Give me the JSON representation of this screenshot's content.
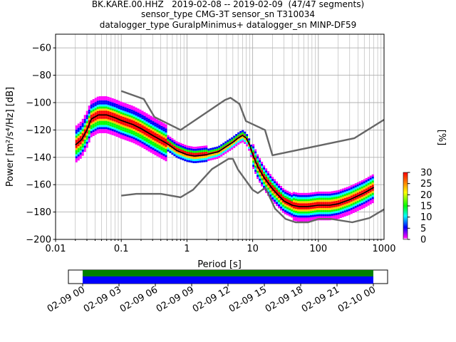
{
  "titles": [
    "BK.KARE.00.HHZ   2019-02-08 -- 2019-02-09  (47/47 segments)",
    "sensor_type CMG-3T sensor_sn T310034",
    "datalogger_type GuralpMinimus+ datalogger_sn MINP-DF59"
  ],
  "colors": {
    "model_lines": "#666666",
    "mode_line": "#000000",
    "grid": "#b0b0b0",
    "coverage_green": "#008000",
    "coverage_blue": "#0000ff"
  },
  "colorbar": {
    "label": "[%]",
    "ticks": [
      "0",
      "5",
      "10",
      "15",
      "20",
      "25",
      "30"
    ],
    "range": [
      0,
      30
    ],
    "colormap": "pqlx"
  },
  "coverage": {
    "ticks": [
      "02-09 00",
      "02-09 03",
      "02-09 06",
      "02-09 09",
      "02-09 12",
      "02-09 15",
      "02-09 18",
      "02-09 21",
      "02-10 00"
    ],
    "data_span_fraction": [
      0.0,
      1.0
    ]
  },
  "chart_data": {
    "type": "heatmap",
    "title": "BK.KARE.00.HHZ   2019-02-08 -- 2019-02-09  (47/47 segments)",
    "xlabel": "Period [s]",
    "ylabel": "Power [m²/s⁴/Hz] [dB]",
    "xscale": "log",
    "xlim": [
      0.01,
      1000
    ],
    "ylim": [
      -200,
      -50
    ],
    "xticks": [
      "0.01",
      "0.1",
      "1",
      "10",
      "100",
      "1000"
    ],
    "yticks": [
      "−200",
      "−180",
      "−160",
      "−140",
      "−120",
      "−100",
      "−80",
      "−60"
    ],
    "grid": true,
    "mode": {
      "period": [
        0.02,
        0.025,
        0.03,
        0.035,
        0.045,
        0.06,
        0.08,
        0.1,
        0.15,
        0.2,
        0.3,
        0.5,
        0.7,
        1.0,
        1.3,
        2,
        3,
        4,
        5,
        6,
        7,
        8,
        9,
        10,
        12,
        15,
        20,
        25,
        30,
        40,
        50,
        70,
        100,
        150,
        200,
        300,
        500,
        700
      ],
      "power": [
        -131,
        -127,
        -120,
        -112,
        -109,
        -109,
        -111,
        -113,
        -116,
        -119,
        -124,
        -130,
        -135,
        -138,
        -139,
        -138,
        -136,
        -132,
        -129,
        -126,
        -124,
        -126,
        -131,
        -138,
        -147,
        -155,
        -163,
        -168,
        -172,
        -175,
        -176,
        -176,
        -175,
        -175,
        -174,
        -171,
        -166,
        -162
      ]
    },
    "nhnm": {
      "period": [
        0.1,
        0.22,
        0.32,
        0.8,
        3.8,
        4.6,
        6.3,
        7.9,
        15.4,
        20,
        354.8,
        1000
      ],
      "power": [
        -91.5,
        -97.4,
        -110.5,
        -120,
        -98,
        -96.5,
        -101,
        -113.5,
        -120,
        -138.5,
        -126,
        -112.5
      ]
    },
    "nlnm": {
      "period": [
        0.1,
        0.17,
        0.4,
        0.8,
        1.24,
        2.4,
        4.3,
        5,
        6,
        10,
        12,
        15.6,
        21.9,
        31.6,
        45,
        70,
        101,
        154,
        328,
        600,
        1000
      ],
      "power": [
        -168,
        -166.7,
        -166.7,
        -169.2,
        -163.7,
        -148.6,
        -141.1,
        -141.1,
        -149,
        -163.8,
        -166.2,
        -162.1,
        -177.5,
        -185,
        -187.5,
        -187.5,
        -185,
        -185,
        -187.5,
        -184.4,
        -178
      ]
    }
  }
}
